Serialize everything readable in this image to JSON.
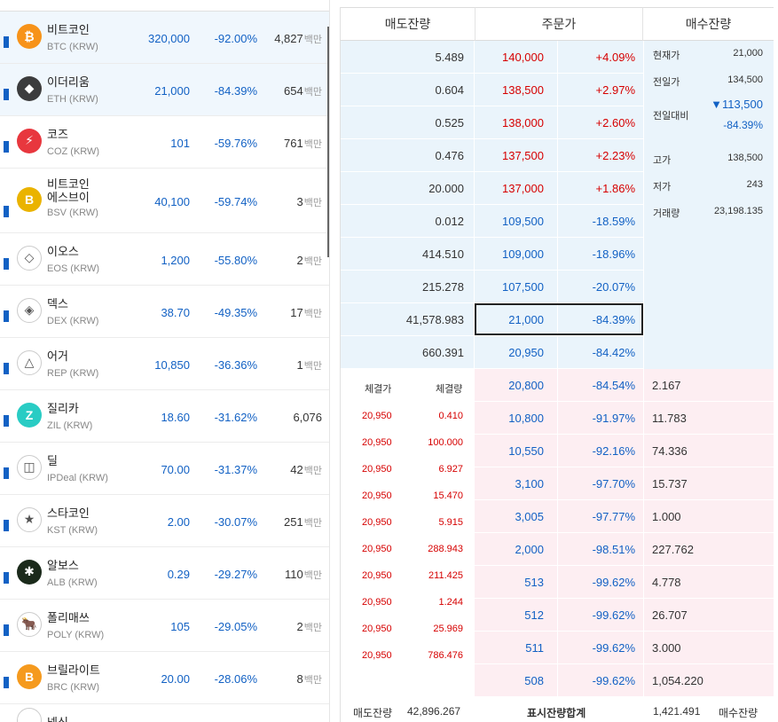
{
  "coins": [
    {
      "name": "비트코인",
      "symbol": "BTC (KRW)",
      "price": "320,000",
      "change": "-92.00%",
      "volume": "4,827",
      "unit": "백만",
      "icon": "bitcoin-icon",
      "color": "#f7931a",
      "glyph": "₿"
    },
    {
      "name": "이더리움",
      "symbol": "ETH (KRW)",
      "price": "21,000",
      "change": "-84.39%",
      "volume": "654",
      "unit": "백만",
      "icon": "ethereum-icon",
      "color": "#3c3c3d",
      "glyph": "◆"
    },
    {
      "name": "코즈",
      "symbol": "COZ (KRW)",
      "price": "101",
      "change": "-59.76%",
      "volume": "761",
      "unit": "백만",
      "icon": "coz-icon",
      "color": "#e8373e",
      "glyph": "⚡"
    },
    {
      "name": "비트코인 에스브이",
      "symbol": "BSV (KRW)",
      "price": "40,100",
      "change": "-59.74%",
      "volume": "3",
      "unit": "백만",
      "icon": "bitcoin-sv-icon",
      "color": "#eab300",
      "glyph": "B"
    },
    {
      "name": "이오스",
      "symbol": "EOS (KRW)",
      "price": "1,200",
      "change": "-55.80%",
      "volume": "2",
      "unit": "백만",
      "icon": "eos-icon",
      "color": "#ffffff",
      "glyph": "◇"
    },
    {
      "name": "덱스",
      "symbol": "DEX (KRW)",
      "price": "38.70",
      "change": "-49.35%",
      "volume": "17",
      "unit": "백만",
      "icon": "dex-icon",
      "color": "#ffffff",
      "glyph": "◈"
    },
    {
      "name": "어거",
      "symbol": "REP (KRW)",
      "price": "10,850",
      "change": "-36.36%",
      "volume": "1",
      "unit": "백만",
      "icon": "augur-icon",
      "color": "#ffffff",
      "glyph": "△"
    },
    {
      "name": "질리카",
      "symbol": "ZIL (KRW)",
      "price": "18.60",
      "change": "-31.62%",
      "volume": "6,076",
      "unit": "",
      "icon": "zilliqa-icon",
      "color": "#29ccc4",
      "glyph": "Z"
    },
    {
      "name": "딜",
      "symbol": "IPDeal (KRW)",
      "price": "70.00",
      "change": "-31.37%",
      "volume": "42",
      "unit": "백만",
      "icon": "ipdeal-icon",
      "color": "#ffffff",
      "glyph": "◫"
    },
    {
      "name": "스타코인",
      "symbol": "KST (KRW)",
      "price": "2.00",
      "change": "-30.07%",
      "volume": "251",
      "unit": "백만",
      "icon": "starcoin-icon",
      "color": "#ffffff",
      "glyph": "★"
    },
    {
      "name": "알보스",
      "symbol": "ALB (KRW)",
      "price": "0.29",
      "change": "-29.27%",
      "volume": "110",
      "unit": "백만",
      "icon": "albos-icon",
      "color": "#1b2a1b",
      "glyph": "✱"
    },
    {
      "name": "폴리매쓰",
      "symbol": "POLY (KRW)",
      "price": "105",
      "change": "-29.05%",
      "volume": "2",
      "unit": "백만",
      "icon": "polymath-icon",
      "color": "#ffffff",
      "glyph": "🐂"
    },
    {
      "name": "브릴라이트",
      "symbol": "BRC (KRW)",
      "price": "20.00",
      "change": "-28.06%",
      "volume": "8",
      "unit": "백만",
      "icon": "brillight-icon",
      "color": "#f59a1e",
      "glyph": "B"
    },
    {
      "name": "넴식",
      "symbol": "",
      "price": "",
      "change": "",
      "volume": "",
      "unit": "",
      "icon": "partial-coin-icon",
      "color": "#ffffff",
      "glyph": ""
    }
  ],
  "orderbook": {
    "headers": {
      "ask": "매도잔량",
      "price": "주문가",
      "bid": "매수잔량"
    },
    "asks": [
      {
        "qty": "5.489",
        "price": "140,000",
        "change": "+4.09%",
        "color": "red"
      },
      {
        "qty": "0.604",
        "price": "138,500",
        "change": "+2.97%",
        "color": "red"
      },
      {
        "qty": "0.525",
        "price": "138,000",
        "change": "+2.60%",
        "color": "red"
      },
      {
        "qty": "0.476",
        "price": "137,500",
        "change": "+2.23%",
        "color": "red"
      },
      {
        "qty": "20.000",
        "price": "137,000",
        "change": "+1.86%",
        "color": "red"
      },
      {
        "qty": "0.012",
        "price": "109,500",
        "change": "-18.59%",
        "color": "blue"
      },
      {
        "qty": "414.510",
        "price": "109,000",
        "change": "-18.96%",
        "color": "blue"
      },
      {
        "qty": "215.278",
        "price": "107,500",
        "change": "-20.07%",
        "color": "blue"
      },
      {
        "qty": "41,578.983",
        "price": "21,000",
        "change": "-84.39%",
        "color": "blue"
      },
      {
        "qty": "660.391",
        "price": "20,950",
        "change": "-84.42%",
        "color": "blue"
      }
    ],
    "bids": [
      {
        "price": "20,800",
        "change": "-84.54%",
        "qty": "2.167"
      },
      {
        "price": "10,800",
        "change": "-91.97%",
        "qty": "11.783"
      },
      {
        "price": "10,550",
        "change": "-92.16%",
        "qty": "74.336"
      },
      {
        "price": "3,100",
        "change": "-97.70%",
        "qty": "15.737"
      },
      {
        "price": "3,005",
        "change": "-97.77%",
        "qty": "1.000"
      },
      {
        "price": "2,000",
        "change": "-98.51%",
        "qty": "227.762"
      },
      {
        "price": "513",
        "change": "-99.62%",
        "qty": "4.778"
      },
      {
        "price": "512",
        "change": "-99.62%",
        "qty": "26.707"
      },
      {
        "price": "511",
        "change": "-99.62%",
        "qty": "3.000"
      },
      {
        "price": "508",
        "change": "-99.62%",
        "qty": "1,054.220"
      }
    ],
    "info": [
      {
        "key": "현재가",
        "value": "21,000"
      },
      {
        "key": "전일가",
        "value": "134,500"
      },
      {
        "key": "전일대비",
        "value": "▼113,500",
        "value2": "-84.39%"
      },
      {
        "key": "고가",
        "value": "138,500"
      },
      {
        "key": "저가",
        "value": "243"
      },
      {
        "key": "거래량",
        "value": "23,198.135"
      }
    ],
    "trades": {
      "head_price": "체결가",
      "head_qty": "체결량",
      "rows": [
        {
          "price": "20,950",
          "qty": "0.410"
        },
        {
          "price": "20,950",
          "qty": "100.000"
        },
        {
          "price": "20,950",
          "qty": "6.927"
        },
        {
          "price": "20,950",
          "qty": "15.470"
        },
        {
          "price": "20,950",
          "qty": "5.915"
        },
        {
          "price": "20,950",
          "qty": "288.943"
        },
        {
          "price": "20,950",
          "qty": "211.425"
        },
        {
          "price": "20,950",
          "qty": "1.244"
        },
        {
          "price": "20,950",
          "qty": "25.969"
        },
        {
          "price": "20,950",
          "qty": "786.476"
        }
      ]
    },
    "footer": {
      "ask_label": "매도잔량",
      "ask_total": "42,896.267",
      "center_label": "표시잔량합계",
      "bid_total": "1,421.491",
      "bid_label": "매수잔량"
    }
  },
  "colors": {
    "up": "#d60000",
    "down": "#1261c4",
    "ask_bg": "#eaf4fb",
    "bid_bg": "#fdeef2"
  }
}
